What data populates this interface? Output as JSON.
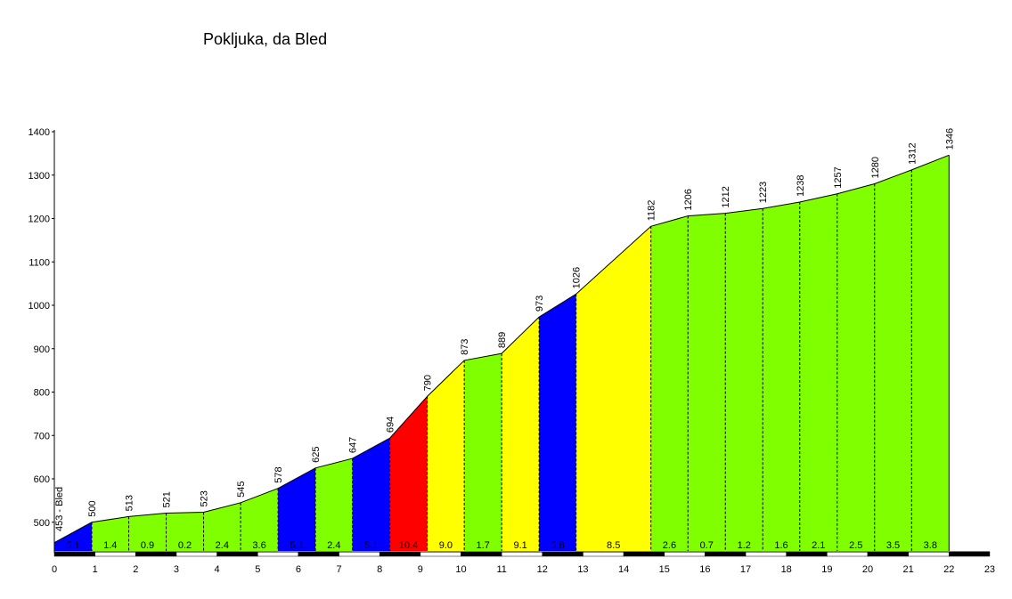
{
  "chart_data": {
    "type": "area",
    "title": "Pokljuka, da Bled",
    "xlim": [
      0,
      23
    ],
    "ylim": [
      420,
      1400
    ],
    "x_ticks": [
      "0",
      "1",
      "2",
      "3",
      "4",
      "5",
      "6",
      "7",
      "8",
      "9",
      "10",
      "11",
      "12",
      "13",
      "14",
      "15",
      "16",
      "17",
      "18",
      "19",
      "20",
      "21",
      "22",
      "23"
    ],
    "y_ticks": [
      "500",
      "600",
      "700",
      "800",
      "900",
      "1000",
      "1100",
      "1200",
      "1300",
      "1400"
    ],
    "y_tick_values": [
      500,
      600,
      700,
      800,
      900,
      1000,
      1100,
      1200,
      1300,
      1400
    ],
    "points": [
      {
        "x": 0.0,
        "y": 453,
        "label": "453 - Bled"
      },
      {
        "x": 0.92,
        "y": 500,
        "label": "500"
      },
      {
        "x": 1.83,
        "y": 513,
        "label": "513"
      },
      {
        "x": 2.75,
        "y": 521,
        "label": "521"
      },
      {
        "x": 3.67,
        "y": 523,
        "label": "523"
      },
      {
        "x": 4.58,
        "y": 545,
        "label": "545"
      },
      {
        "x": 5.5,
        "y": 578,
        "label": "578"
      },
      {
        "x": 6.42,
        "y": 625,
        "label": "625"
      },
      {
        "x": 7.33,
        "y": 647,
        "label": "647"
      },
      {
        "x": 8.25,
        "y": 694,
        "label": "694"
      },
      {
        "x": 9.17,
        "y": 790,
        "label": "790"
      },
      {
        "x": 10.08,
        "y": 873,
        "label": "873"
      },
      {
        "x": 11.0,
        "y": 889,
        "label": "889"
      },
      {
        "x": 11.92,
        "y": 973,
        "label": "973"
      },
      {
        "x": 12.83,
        "y": 1026,
        "label": "1026"
      },
      {
        "x": 14.67,
        "y": 1182,
        "label": "1182"
      },
      {
        "x": 15.58,
        "y": 1206,
        "label": "1206"
      },
      {
        "x": 16.5,
        "y": 1212,
        "label": "1212"
      },
      {
        "x": 17.42,
        "y": 1223,
        "label": "1223"
      },
      {
        "x": 18.33,
        "y": 1238,
        "label": "1238"
      },
      {
        "x": 19.25,
        "y": 1257,
        "label": "1257"
      },
      {
        "x": 20.17,
        "y": 1280,
        "label": "1280"
      },
      {
        "x": 21.08,
        "y": 1312,
        "label": "1312"
      },
      {
        "x": 22.0,
        "y": 1346,
        "label": "1346"
      }
    ],
    "segments": [
      {
        "gradient": "5.1",
        "color": "#0000ff"
      },
      {
        "gradient": "1.4",
        "color": "#80ff00"
      },
      {
        "gradient": "0.9",
        "color": "#80ff00"
      },
      {
        "gradient": "0.2",
        "color": "#80ff00"
      },
      {
        "gradient": "2.4",
        "color": "#80ff00"
      },
      {
        "gradient": "3.6",
        "color": "#80ff00"
      },
      {
        "gradient": "5.1",
        "color": "#0000ff"
      },
      {
        "gradient": "2.4",
        "color": "#80ff00"
      },
      {
        "gradient": "5.1",
        "color": "#0000ff"
      },
      {
        "gradient": "10.4",
        "color": "#ff0000"
      },
      {
        "gradient": "9.0",
        "color": "#ffff00"
      },
      {
        "gradient": "1.7",
        "color": "#80ff00"
      },
      {
        "gradient": "9.1",
        "color": "#ffff00"
      },
      {
        "gradient": "5.8",
        "color": "#0000ff"
      },
      {
        "gradient": "8.5",
        "color": "#ffff00"
      },
      {
        "gradient": "2.6",
        "color": "#80ff00"
      },
      {
        "gradient": "0.7",
        "color": "#80ff00"
      },
      {
        "gradient": "1.2",
        "color": "#80ff00"
      },
      {
        "gradient": "1.6",
        "color": "#80ff00"
      },
      {
        "gradient": "2.1",
        "color": "#80ff00"
      },
      {
        "gradient": "2.5",
        "color": "#80ff00"
      },
      {
        "gradient": "3.5",
        "color": "#80ff00"
      },
      {
        "gradient": "3.8",
        "color": "#80ff00"
      }
    ],
    "grid": false
  }
}
